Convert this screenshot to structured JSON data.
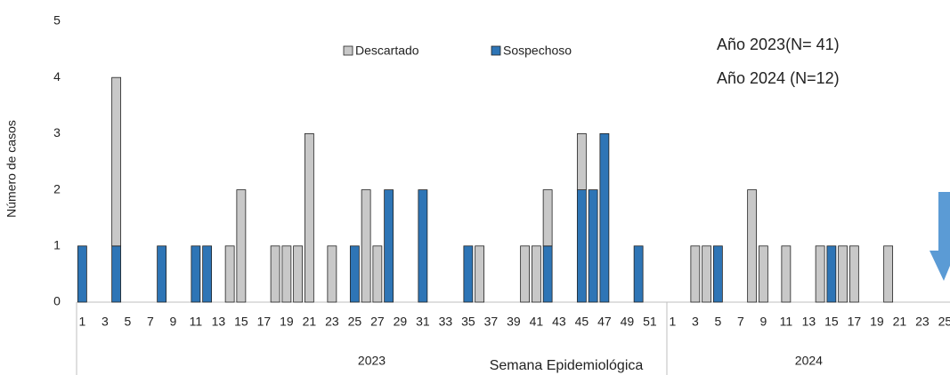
{
  "chart_data": {
    "type": "stacked-bar",
    "annotations": [
      "Año 2023(N= 41)",
      "Año 2024 (N=12)"
    ],
    "x_label": "Semana Epidemiológica",
    "y_label": "Número de casos",
    "ylim": [
      0,
      5
    ],
    "yticks": [
      0,
      1,
      2,
      3,
      4,
      5
    ],
    "groups": [
      {
        "name": "2023",
        "categories": [
          "1",
          null,
          "3",
          null,
          "5",
          null,
          "7",
          null,
          "9",
          null,
          "11",
          null,
          "13",
          null,
          "15",
          null,
          "17",
          null,
          "19",
          null,
          "21",
          null,
          "23",
          null,
          "25",
          null,
          "27",
          null,
          "29",
          null,
          "31",
          null,
          "33",
          null,
          "35",
          null,
          "37",
          null,
          "39",
          null,
          "41",
          null,
          "43",
          null,
          "45",
          null,
          "47",
          null,
          "49",
          null,
          "51",
          null
        ]
      },
      {
        "name": "2024",
        "categories": [
          "1",
          null,
          "3",
          null,
          "5",
          null,
          "7",
          null,
          "9",
          null,
          "11",
          null,
          "13",
          null,
          "15",
          null,
          "17",
          null,
          "19",
          null,
          "21",
          null,
          "23",
          null,
          "25"
        ]
      }
    ],
    "series": [
      {
        "name": "Sospechoso",
        "color": "#2e75b6",
        "values": [
          1,
          0,
          0,
          1,
          0,
          0,
          0,
          1,
          0,
          0,
          1,
          1,
          0,
          0,
          0,
          0,
          0,
          0,
          0,
          0,
          0,
          0,
          0,
          0,
          1,
          0,
          0,
          2,
          0,
          0,
          2,
          0,
          0,
          0,
          1,
          0,
          0,
          0,
          0,
          0,
          0,
          1,
          0,
          0,
          2,
          2,
          3,
          0,
          0,
          1,
          0,
          0,
          0,
          0,
          0,
          0,
          1,
          0,
          0,
          0,
          0,
          0,
          0,
          0,
          0,
          0,
          1,
          0,
          0,
          0,
          0,
          0,
          0,
          0,
          0,
          0,
          0
        ]
      },
      {
        "name": "Descartado",
        "color": "#c8c8c8",
        "values": [
          0,
          0,
          0,
          3,
          0,
          0,
          0,
          0,
          0,
          0,
          0,
          0,
          0,
          1,
          2,
          0,
          0,
          1,
          1,
          1,
          3,
          0,
          1,
          0,
          0,
          2,
          1,
          0,
          0,
          0,
          0,
          0,
          0,
          0,
          0,
          1,
          0,
          0,
          0,
          1,
          1,
          1,
          0,
          0,
          1,
          0,
          0,
          0,
          0,
          0,
          0,
          0,
          0,
          0,
          1,
          1,
          0,
          0,
          0,
          2,
          1,
          0,
          1,
          0,
          0,
          1,
          0,
          1,
          1,
          0,
          0,
          1,
          0,
          0,
          0,
          0,
          0
        ]
      }
    ]
  }
}
